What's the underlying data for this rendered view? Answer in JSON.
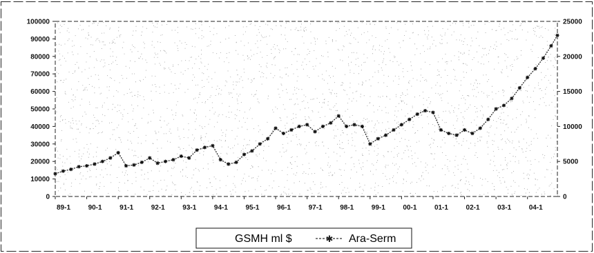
{
  "chart_data": {
    "type": "line",
    "title": "",
    "xlabel": "",
    "ylabel": "",
    "x_tick_labels": [
      "89-1",
      "90-1",
      "91-1",
      "92-1",
      "93-1",
      "94-1",
      "95-1",
      "96-1",
      "97-1",
      "98-1",
      "99-1",
      "00-1",
      "01-1",
      "02-1",
      "03-1",
      "04-1"
    ],
    "x_range": [
      1989.0,
      2004.95
    ],
    "y_left": {
      "range": [
        0,
        100000
      ],
      "step": 10000
    },
    "y_right": {
      "range": [
        0,
        25000
      ],
      "step": 5000
    },
    "grid": false,
    "legend": {
      "placement": "bottom-center",
      "entries": [
        "GSMH ml $",
        "Ara-Serm"
      ]
    },
    "series": [
      {
        "name": "Ara-Serm",
        "axis": "left",
        "color": "#333333",
        "marker": "asterisk",
        "x": [
          1989.0,
          1989.25,
          1989.5,
          1989.75,
          1990.0,
          1990.25,
          1990.5,
          1990.75,
          1991.0,
          1991.25,
          1991.5,
          1991.75,
          1992.0,
          1992.25,
          1992.5,
          1992.75,
          1993.0,
          1993.25,
          1993.5,
          1993.75,
          1994.0,
          1994.25,
          1994.5,
          1994.75,
          1995.0,
          1995.25,
          1995.5,
          1995.75,
          1996.0,
          1996.25,
          1996.5,
          1996.75,
          1997.0,
          1997.25,
          1997.5,
          1997.75,
          1998.0,
          1998.25,
          1998.5,
          1998.75,
          1999.0,
          1999.25,
          1999.5,
          1999.75,
          2000.0,
          2000.25,
          2000.5,
          2000.75,
          2001.0,
          2001.25,
          2001.5,
          2001.75,
          2002.0,
          2002.25,
          2002.5,
          2002.75,
          2003.0,
          2003.25,
          2003.5,
          2003.75,
          2004.0,
          2004.25,
          2004.5,
          2004.75,
          2004.95
        ],
        "values": [
          13000,
          14500,
          15500,
          17000,
          17500,
          18500,
          20000,
          22000,
          25000,
          17500,
          18000,
          19500,
          22000,
          19000,
          20000,
          21000,
          23000,
          22000,
          26500,
          28000,
          29000,
          21000,
          18500,
          19500,
          24000,
          26000,
          30000,
          33000,
          39000,
          36000,
          38000,
          40000,
          41000,
          37000,
          40000,
          42000,
          46000,
          40000,
          41000,
          40000,
          30000,
          33000,
          35000,
          38000,
          41000,
          44000,
          47000,
          49000,
          48000,
          38000,
          36000,
          35000,
          38000,
          36000,
          39000,
          44000,
          50000,
          52000,
          56000,
          62000,
          68000,
          73000,
          79000,
          86000,
          92000
        ]
      }
    ]
  }
}
